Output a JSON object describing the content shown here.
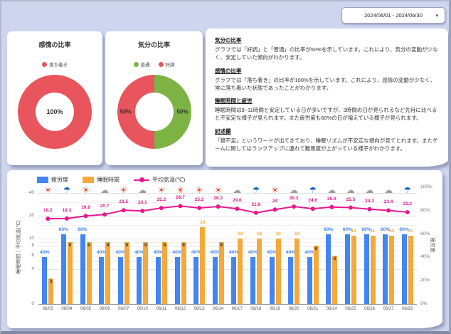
{
  "date_picker": {
    "value": "2024/06/01 - 2024/06/30",
    "caret": "▾"
  },
  "emotion_donut": {
    "title": "感情の比率",
    "legend": [
      {
        "label": "落ち着き",
        "color": "#E8555C"
      }
    ],
    "center_label": "100%",
    "slices": [
      {
        "label": "落ち着き",
        "value": 100,
        "display": "100%",
        "color": "#E8555C"
      }
    ]
  },
  "mood_donut": {
    "title": "気分の比率",
    "legend": [
      {
        "label": "普通",
        "color": "#7CB342"
      },
      {
        "label": "好調",
        "color": "#E8555C"
      }
    ],
    "slices": [
      {
        "label": "普通",
        "value": 50,
        "display": "50%",
        "color": "#7CB342"
      },
      {
        "label": "好調",
        "value": 50,
        "display": "50%",
        "color": "#E8555C"
      }
    ]
  },
  "report": {
    "sections": [
      {
        "heading": "気分の比率",
        "body": "グラフでは「好調」と「普通」の比率が50%を示しています。これにより、気分の変動が少なく、安定していた傾向がわかります。"
      },
      {
        "heading": "感情の比率",
        "body": "グラフでは「落ち着き」の比率が100%を示しています。これにより、感情の変動が少なく、常に落ち着いた状態であったことがわかります。"
      },
      {
        "heading": "睡眠時間と疲労",
        "body": "睡眠時間は9~11時間と安定している日が多いですが、3時間の日が見られるなど先月に比べると不安定な様子が見られます。また疲労度も60%の日が増えている様子が見られます。"
      },
      {
        "heading": "記述欄",
        "body": "「寝不足」というワードが出てきており、睡眠リズムが不安定な傾向が見てとれます。またゲームに関してはランクアップに連れて難易度が上がっている様子がわかります。"
      }
    ]
  },
  "chart_data": {
    "type": "bar",
    "title": "",
    "categories": [
      "06/03",
      "06/04",
      "06/05",
      "06/06",
      "06/07",
      "06/10",
      "06/11",
      "06/12",
      "06/13",
      "06/14",
      "06/17",
      "06/18",
      "06/19",
      "06/20",
      "06/21",
      "06/24",
      "06/25",
      "06/26",
      "06/27",
      "06/28"
    ],
    "series": [
      {
        "name": "疲労度",
        "type": "bar",
        "axis": "right",
        "unit": "%",
        "color": "#4285F4",
        "values": [
          40,
          60,
          60,
          40,
          40,
          40,
          40,
          40,
          40,
          40,
          40,
          40,
          40,
          40,
          40,
          60,
          60,
          60,
          60,
          60
        ]
      },
      {
        "name": "睡眠時間",
        "type": "bar",
        "axis": "left",
        "unit": "時間",
        "color": "#F5A83B",
        "values": [
          3,
          9,
          9,
          9,
          9,
          9,
          9,
          9,
          14,
          9,
          10,
          10,
          10,
          10,
          8,
          6,
          11,
          11,
          11,
          11
        ]
      },
      {
        "name": "平均気温(℃)",
        "type": "line",
        "axis": "left",
        "unit": "℃",
        "color": "#E7178F",
        "values": [
          18.2,
          18.3,
          19.8,
          20.7,
          23.5,
          23.1,
          25.2,
          26.7,
          25.2,
          26.3,
          24.6,
          21.8,
          24,
          26.3,
          24.6,
          25.9,
          25.5,
          24.3,
          23.4,
          22.2
        ]
      }
    ],
    "weather": [
      "sun",
      "rain",
      "sun",
      "cloud",
      "sun",
      "cloud",
      "sun",
      "sun",
      "sun",
      "sun",
      "cloud",
      "rain",
      "sun",
      "cloud",
      "rain",
      "cloud",
      "cloud",
      "cloud",
      "cloud",
      "rain"
    ],
    "weather_icon_glyphs": {
      "sun": "☀",
      "rain": "☂",
      "cloud": "☁"
    },
    "weather_icon_colors": {
      "sun": "#E8432C",
      "rain": "#1565C0",
      "cloud": "#9E9E9E"
    },
    "left_axis": {
      "title": "睡眠時間｜平均気温(℃)",
      "scale": "log",
      "ticks": [
        40,
        20,
        10,
        8,
        6,
        4,
        0
      ]
    },
    "right_axis": {
      "title": "疲労度",
      "ticks": [
        "100%",
        "80%",
        "60%",
        "40%",
        "20%",
        "0%"
      ],
      "range": [
        0,
        100
      ]
    },
    "legend_position": "top",
    "grid": true,
    "inside_label_threshold": 10,
    "inside_label_color": "#333333"
  }
}
